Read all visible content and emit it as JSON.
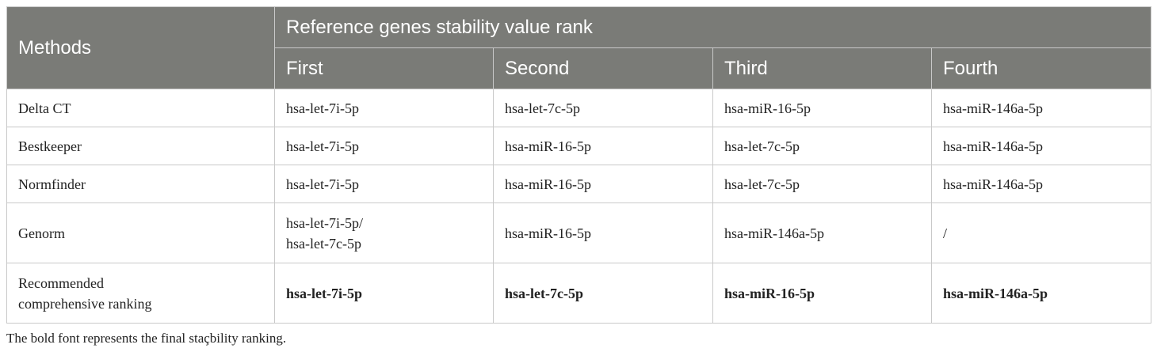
{
  "table": {
    "header": {
      "methods": "Methods",
      "group": "Reference genes stability value rank",
      "ranks": [
        "First",
        "Second",
        "Third",
        "Fourth"
      ]
    },
    "rows": [
      {
        "method": "Delta CT",
        "values": [
          "hsa-let-7i-5p",
          "hsa-let-7c-5p",
          "hsa-miR-16-5p",
          "hsa-miR-146a-5p"
        ]
      },
      {
        "method": "Bestkeeper",
        "values": [
          "hsa-let-7i-5p",
          "hsa-miR-16-5p",
          "hsa-let-7c-5p",
          "hsa-miR-146a-5p"
        ]
      },
      {
        "method": "Normfinder",
        "values": [
          "hsa-let-7i-5p",
          "hsa-miR-16-5p",
          "hsa-let-7c-5p",
          "hsa-miR-146a-5p"
        ]
      },
      {
        "method": "Genorm",
        "first_lines": [
          "hsa-let-7i-5p/",
          "hsa-let-7c-5p"
        ],
        "values": [
          "",
          "hsa-miR-16-5p",
          "hsa-miR-146a-5p",
          "/"
        ]
      },
      {
        "method_lines": [
          "Recommended",
          "comprehensive ranking"
        ],
        "values": [
          "hsa-let-7i-5p",
          "hsa-let-7c-5p",
          "hsa-miR-16-5p",
          "hsa-miR-146a-5p"
        ]
      }
    ]
  },
  "footnote": "The bold font represents the final staçbility ranking."
}
